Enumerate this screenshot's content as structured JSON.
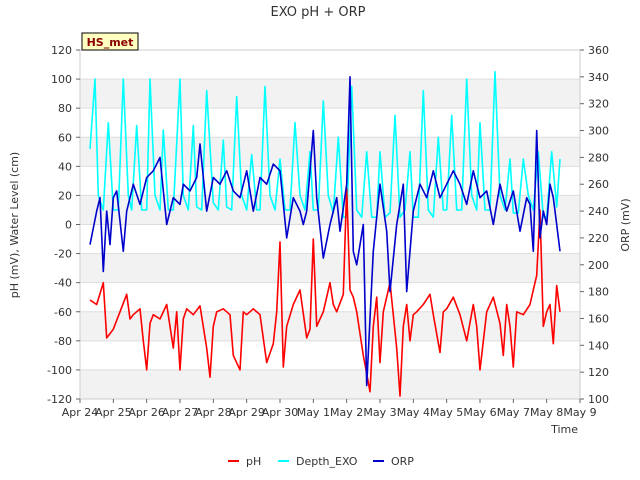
{
  "chart_data": {
    "type": "line",
    "title": "EXO pH + ORP",
    "badge": "HS_met",
    "xlabel": "Time",
    "ylabel_left": "pH (mV), Water Level (cm)",
    "ylabel_right": "ORP (mV)",
    "x_ticks": [
      "Apr 24",
      "Apr 25",
      "Apr 26",
      "Apr 27",
      "Apr 28",
      "Apr 29",
      "Apr 30",
      "May 1",
      "May 2",
      "May 3",
      "May 4",
      "May 5",
      "May 6",
      "May 7",
      "May 8",
      "May 9"
    ],
    "xlim_days": [
      0,
      15
    ],
    "ylim_left": [
      -120,
      120
    ],
    "ylim_right": [
      100,
      360
    ],
    "left_ticks": [
      120,
      100,
      80,
      60,
      40,
      20,
      0,
      -20,
      -40,
      -60,
      -80,
      -100,
      -120
    ],
    "right_ticks": [
      360,
      340,
      320,
      300,
      280,
      260,
      240,
      220,
      200,
      180,
      160,
      140,
      120,
      100
    ],
    "grid": true,
    "legend_position": "bottom-center",
    "colors": {
      "pH": "#ff0000",
      "Depth_EXO": "#00ffff",
      "ORP": "#0000cc"
    },
    "series": [
      {
        "name": "pH",
        "axis": "left",
        "x": [
          0.3,
          0.5,
          0.7,
          0.8,
          0.9,
          1.0,
          1.2,
          1.4,
          1.5,
          1.6,
          1.8,
          1.9,
          2.0,
          2.1,
          2.2,
          2.4,
          2.6,
          2.8,
          2.9,
          3.0,
          3.1,
          3.2,
          3.4,
          3.6,
          3.8,
          3.9,
          4.0,
          4.1,
          4.3,
          4.5,
          4.6,
          4.8,
          4.9,
          5.0,
          5.2,
          5.4,
          5.6,
          5.8,
          5.9,
          6.0,
          6.1,
          6.2,
          6.4,
          6.6,
          6.8,
          6.9,
          7.0,
          7.1,
          7.3,
          7.5,
          7.6,
          7.7,
          7.9,
          8.0,
          8.1,
          8.2,
          8.3,
          8.5,
          8.7,
          8.8,
          8.9,
          9.0,
          9.1,
          9.3,
          9.5,
          9.6,
          9.7,
          9.8,
          9.9,
          10.0,
          10.1,
          10.3,
          10.5,
          10.6,
          10.8,
          10.9,
          11.0,
          11.2,
          11.4,
          11.6,
          11.8,
          11.9,
          12.0,
          12.2,
          12.4,
          12.6,
          12.7,
          12.8,
          12.9,
          13.0,
          13.1,
          13.3,
          13.5,
          13.6,
          13.7,
          13.8,
          13.9,
          14.0,
          14.1,
          14.2,
          14.3,
          14.4
        ],
        "y": [
          -52,
          -55,
          -40,
          -78,
          -75,
          -72,
          -60,
          -48,
          -65,
          -62,
          -58,
          -80,
          -100,
          -68,
          -62,
          -65,
          -55,
          -85,
          -60,
          -100,
          -65,
          -58,
          -62,
          -56,
          -85,
          -105,
          -70,
          -60,
          -58,
          -62,
          -90,
          -100,
          -60,
          -62,
          -58,
          -62,
          -95,
          -82,
          -60,
          -12,
          -98,
          -70,
          -55,
          -45,
          -78,
          -72,
          -10,
          -70,
          -60,
          -40,
          -55,
          -60,
          -48,
          25,
          -45,
          -50,
          -60,
          -90,
          -115,
          -70,
          -50,
          -95,
          -60,
          -40,
          -85,
          -118,
          -70,
          -55,
          -80,
          -62,
          -60,
          -55,
          -48,
          -62,
          -88,
          -60,
          -58,
          -50,
          -62,
          -80,
          -55,
          -70,
          -100,
          -60,
          -50,
          -68,
          -90,
          -55,
          -70,
          -98,
          -60,
          -62,
          -55,
          -45,
          -35,
          10,
          -70,
          -60,
          -55,
          -82,
          -42,
          -60
        ]
      },
      {
        "name": "Depth_EXO",
        "axis": "left",
        "x": [
          0.3,
          0.45,
          0.55,
          0.7,
          0.85,
          1.0,
          1.15,
          1.3,
          1.45,
          1.55,
          1.7,
          1.85,
          2.0,
          2.1,
          2.25,
          2.4,
          2.5,
          2.65,
          2.8,
          3.0,
          3.1,
          3.25,
          3.4,
          3.5,
          3.65,
          3.8,
          4.0,
          4.15,
          4.3,
          4.4,
          4.55,
          4.7,
          4.85,
          5.0,
          5.15,
          5.3,
          5.4,
          5.55,
          5.7,
          5.85,
          6.0,
          6.15,
          6.3,
          6.45,
          6.6,
          6.75,
          6.9,
          7.0,
          7.15,
          7.3,
          7.45,
          7.6,
          7.75,
          7.9,
          8.0,
          8.15,
          8.3,
          8.45,
          8.6,
          8.75,
          8.9,
          9.0,
          9.15,
          9.3,
          9.45,
          9.6,
          9.75,
          9.9,
          10.0,
          10.15,
          10.3,
          10.45,
          10.6,
          10.75,
          10.9,
          11.0,
          11.15,
          11.3,
          11.45,
          11.6,
          11.75,
          11.9,
          12.0,
          12.15,
          12.3,
          12.45,
          12.6,
          12.75,
          12.9,
          13.0,
          13.15,
          13.3,
          13.45,
          13.6,
          13.75,
          13.9,
          14.0,
          14.15,
          14.3,
          14.4
        ],
        "y": [
          52,
          100,
          20,
          10,
          70,
          10,
          10,
          100,
          20,
          10,
          68,
          10,
          10,
          100,
          20,
          10,
          65,
          10,
          10,
          100,
          20,
          10,
          68,
          12,
          10,
          92,
          15,
          10,
          58,
          12,
          10,
          88,
          20,
          10,
          48,
          10,
          10,
          95,
          20,
          10,
          45,
          10,
          10,
          70,
          20,
          10,
          50,
          10,
          10,
          85,
          20,
          8,
          60,
          5,
          5,
          95,
          10,
          5,
          50,
          5,
          5,
          50,
          5,
          8,
          75,
          5,
          10,
          50,
          5,
          5,
          92,
          10,
          5,
          60,
          10,
          10,
          75,
          10,
          10,
          100,
          20,
          10,
          70,
          10,
          10,
          105,
          20,
          10,
          45,
          8,
          8,
          45,
          20,
          10,
          50,
          5,
          5,
          50,
          12,
          45
        ]
      },
      {
        "name": "ORP",
        "axis": "right",
        "x": [
          0.3,
          0.5,
          0.6,
          0.7,
          0.8,
          0.9,
          1.0,
          1.1,
          1.3,
          1.4,
          1.5,
          1.6,
          1.8,
          2.0,
          2.2,
          2.4,
          2.6,
          2.8,
          3.0,
          3.1,
          3.3,
          3.5,
          3.6,
          3.8,
          4.0,
          4.2,
          4.4,
          4.6,
          4.8,
          5.0,
          5.2,
          5.4,
          5.6,
          5.8,
          6.0,
          6.2,
          6.4,
          6.6,
          6.7,
          6.8,
          7.0,
          7.1,
          7.3,
          7.5,
          7.7,
          7.8,
          8.0,
          8.1,
          8.2,
          8.3,
          8.5,
          8.6,
          8.8,
          9.0,
          9.2,
          9.3,
          9.5,
          9.7,
          9.8,
          10.0,
          10.2,
          10.4,
          10.6,
          10.8,
          11.0,
          11.2,
          11.4,
          11.6,
          11.8,
          12.0,
          12.2,
          12.4,
          12.6,
          12.8,
          13.0,
          13.2,
          13.4,
          13.5,
          13.6,
          13.7,
          13.8,
          13.9,
          14.0,
          14.1,
          14.2,
          14.3,
          14.4
        ],
        "y": [
          215,
          240,
          250,
          195,
          240,
          215,
          250,
          255,
          210,
          240,
          250,
          260,
          245,
          265,
          270,
          280,
          230,
          250,
          245,
          260,
          255,
          265,
          290,
          240,
          265,
          260,
          270,
          255,
          250,
          270,
          240,
          265,
          260,
          275,
          270,
          220,
          250,
          240,
          230,
          240,
          300,
          250,
          205,
          230,
          250,
          225,
          260,
          340,
          210,
          200,
          230,
          110,
          210,
          260,
          225,
          180,
          230,
          260,
          180,
          240,
          260,
          250,
          270,
          250,
          260,
          270,
          260,
          245,
          270,
          250,
          255,
          230,
          260,
          240,
          255,
          225,
          250,
          245,
          210,
          300,
          220,
          240,
          230,
          260,
          250,
          230,
          210
        ]
      }
    ]
  }
}
